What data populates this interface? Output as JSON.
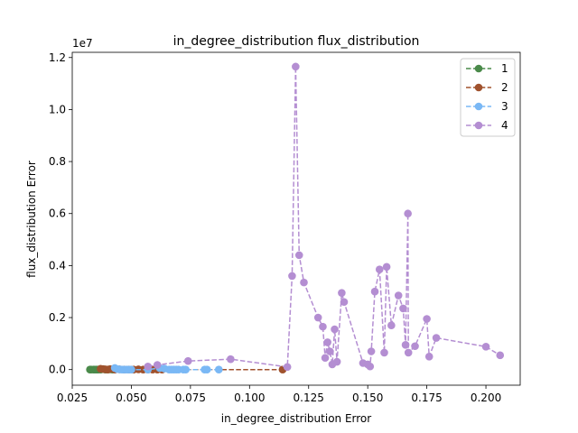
{
  "chart_data": {
    "type": "line",
    "title": "in_degree_distribution flux_distribution",
    "xlabel": "in_degree_distribution Error",
    "ylabel": "flux_distribution Error",
    "y_offset_label": "1e7",
    "xlim": [
      0.025,
      0.2145
    ],
    "ylim": [
      -0.06,
      1.22
    ],
    "y_scale_factor": 10000000,
    "xticks": [
      0.025,
      0.05,
      0.075,
      0.1,
      0.125,
      0.15,
      0.175,
      0.2
    ],
    "xtick_labels": [
      "0.025",
      "0.050",
      "0.075",
      "0.100",
      "0.125",
      "0.150",
      "0.175",
      "0.200"
    ],
    "yticks": [
      0.0,
      0.2,
      0.4,
      0.6,
      0.8,
      1.0,
      1.2
    ],
    "ytick_labels": [
      "0.0",
      "0.2",
      "0.4",
      "0.6",
      "0.8",
      "1.0",
      "1.2"
    ],
    "legend_position": "top-right",
    "grid": false,
    "series": [
      {
        "name": "1",
        "color": "#4a8a4a",
        "points": [
          [
            0.0325,
            0
          ],
          [
            0.033,
            0
          ],
          [
            0.034,
            0
          ],
          [
            0.0345,
            0
          ],
          [
            0.035,
            0
          ],
          [
            0.0355,
            0
          ],
          [
            0.036,
            0
          ],
          [
            0.037,
            0
          ],
          [
            0.038,
            0.002
          ],
          [
            0.039,
            0
          ],
          [
            0.04,
            0
          ],
          [
            0.041,
            0.001
          ],
          [
            0.042,
            0
          ]
        ]
      },
      {
        "name": "2",
        "color": "#a0522d",
        "points": [
          [
            0.037,
            0.003
          ],
          [
            0.038,
            0.002
          ],
          [
            0.039,
            0.001
          ],
          [
            0.04,
            0
          ],
          [
            0.041,
            0.002
          ],
          [
            0.043,
            0
          ],
          [
            0.045,
            0.001
          ],
          [
            0.047,
            0
          ],
          [
            0.049,
            0
          ],
          [
            0.051,
            0
          ],
          [
            0.053,
            0.001
          ],
          [
            0.055,
            0
          ],
          [
            0.057,
            0
          ],
          [
            0.059,
            0
          ],
          [
            0.061,
            0
          ],
          [
            0.063,
            0
          ],
          [
            0.114,
            0
          ]
        ]
      },
      {
        "name": "3",
        "color": "#7ab8f5",
        "points": [
          [
            0.043,
            0.006
          ],
          [
            0.044,
            0.002
          ],
          [
            0.045,
            0.001
          ],
          [
            0.046,
            0
          ],
          [
            0.047,
            0
          ],
          [
            0.048,
            0
          ],
          [
            0.049,
            0
          ],
          [
            0.05,
            0
          ],
          [
            0.057,
            0
          ],
          [
            0.062,
            0.006
          ],
          [
            0.064,
            0.004
          ],
          [
            0.066,
            0
          ],
          [
            0.067,
            0
          ],
          [
            0.068,
            0
          ],
          [
            0.069,
            0
          ],
          [
            0.07,
            0
          ],
          [
            0.072,
            0
          ],
          [
            0.073,
            0
          ],
          [
            0.081,
            0
          ],
          [
            0.082,
            0
          ],
          [
            0.087,
            0
          ]
        ]
      },
      {
        "name": "4",
        "color": "#b48ed2",
        "points": [
          [
            0.057,
            0.012
          ],
          [
            0.061,
            0.018
          ],
          [
            0.074,
            0.033
          ],
          [
            0.092,
            0.04
          ],
          [
            0.116,
            0.01
          ],
          [
            0.118,
            0.36
          ],
          [
            0.1195,
            1.165
          ],
          [
            0.121,
            0.44
          ],
          [
            0.123,
            0.335
          ],
          [
            0.129,
            0.2
          ],
          [
            0.131,
            0.165
          ],
          [
            0.132,
            0.045
          ],
          [
            0.133,
            0.105
          ],
          [
            0.134,
            0.07
          ],
          [
            0.135,
            0.02
          ],
          [
            0.136,
            0.155
          ],
          [
            0.137,
            0.03
          ],
          [
            0.139,
            0.295
          ],
          [
            0.14,
            0.26
          ],
          [
            0.148,
            0.025
          ],
          [
            0.15,
            0.02
          ],
          [
            0.151,
            0.012
          ],
          [
            0.1515,
            0.07
          ],
          [
            0.153,
            0.3
          ],
          [
            0.155,
            0.385
          ],
          [
            0.157,
            0.065
          ],
          [
            0.158,
            0.395
          ],
          [
            0.16,
            0.17
          ],
          [
            0.163,
            0.285
          ],
          [
            0.165,
            0.235
          ],
          [
            0.166,
            0.095
          ],
          [
            0.167,
            0.6
          ],
          [
            0.1672,
            0.065
          ],
          [
            0.17,
            0.09
          ],
          [
            0.175,
            0.195
          ],
          [
            0.176,
            0.05
          ],
          [
            0.179,
            0.122
          ],
          [
            0.2,
            0.088
          ],
          [
            0.206,
            0.055
          ]
        ]
      }
    ]
  }
}
